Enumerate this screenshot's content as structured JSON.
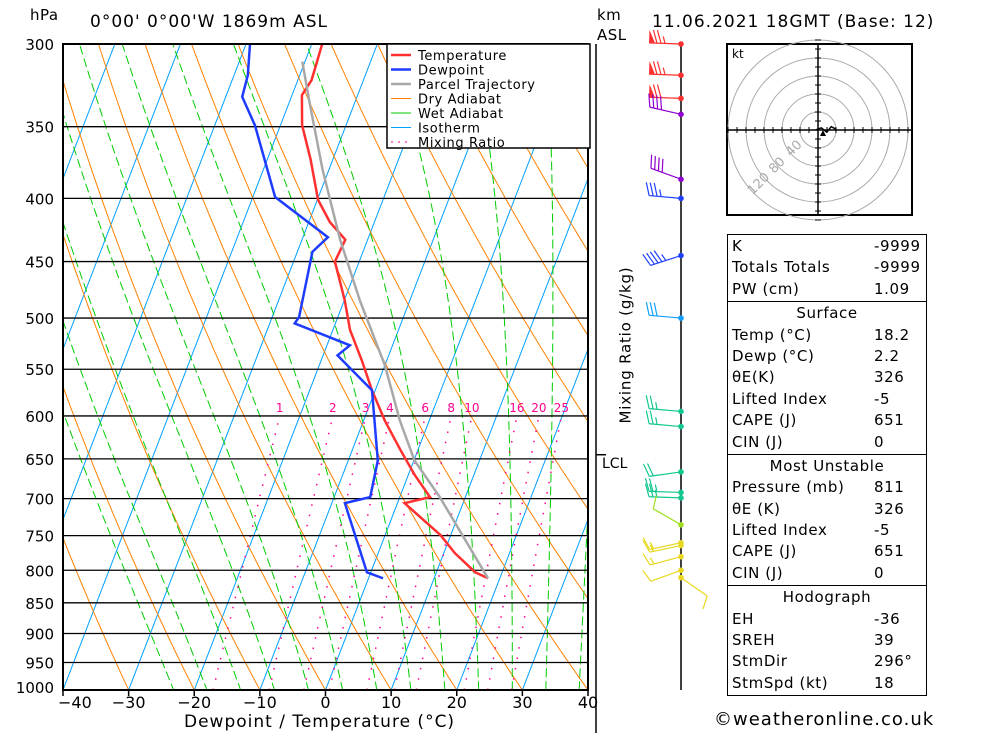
{
  "header": {
    "unit_left": "hPa",
    "location": "0°00' 0°00'W  1869m  ASL",
    "unit_right_1": "km",
    "unit_right_2": "ASL",
    "datetime": "11.06.2021  18GMT  (Base: 12)"
  },
  "footer": {
    "copyright": "©weatheronline.co.uk"
  },
  "colors": {
    "temperature": "#ff3030",
    "dewpoint": "#1e3cff",
    "parcel": "#a8a8a8",
    "dry_adiabat": "#ff8000",
    "wet_adiabat": "#00cc00",
    "isotherm": "#00a0ff",
    "mixing_ratio": "#ff0090"
  },
  "chart_data": {
    "type": "line",
    "subtype": "skew-t log-p",
    "xlabel": "Dewpoint / Temperature (°C)",
    "ylabel": "hPa",
    "secondary_label": "Mixing Ratio (g/kg)",
    "xlim": [
      -40,
      40
    ],
    "ylim": [
      1000,
      300
    ],
    "x_ticks": [
      -40,
      -30,
      -20,
      -10,
      0,
      10,
      20,
      30,
      40
    ],
    "y_ticks": [
      300,
      350,
      400,
      450,
      500,
      550,
      600,
      650,
      700,
      750,
      800,
      850,
      900,
      950,
      1000
    ],
    "mixing_ratio_labels": [
      1,
      2,
      3,
      4,
      6,
      8,
      10,
      16,
      20,
      25
    ],
    "lcl_label": "LCL",
    "lcl_pressure": 645,
    "legend": {
      "placement": "top-right",
      "entries": [
        "Temperature",
        "Dewpoint",
        "Parcel Trajectory",
        "Dry Adiabat",
        "Wet Adiabat",
        "Isotherm",
        "Mixing Ratio"
      ]
    },
    "series": [
      {
        "name": "Temperature",
        "points": [
          [
            812,
            18.2
          ],
          [
            803,
            15.9
          ],
          [
            775,
            11.7
          ],
          [
            749,
            8.4
          ],
          [
            706,
            1.1
          ],
          [
            698,
            4.6
          ],
          [
            670,
            1.0
          ],
          [
            639,
            -2.7
          ],
          [
            605,
            -6.8
          ],
          [
            572,
            -10.5
          ],
          [
            541,
            -13.8
          ],
          [
            511,
            -17.4
          ],
          [
            484,
            -19.9
          ],
          [
            450,
            -23.7
          ],
          [
            432,
            -23.4
          ],
          [
            418,
            -26.8
          ],
          [
            401,
            -29.9
          ],
          [
            372,
            -33.4
          ],
          [
            349,
            -36.7
          ],
          [
            330,
            -38.5
          ],
          [
            321,
            -37.9
          ],
          [
            300,
            -38.4
          ]
        ]
      },
      {
        "name": "Dewpoint",
        "points": [
          [
            812,
            2.2
          ],
          [
            803,
            -0.6
          ],
          [
            706,
            -8.0
          ],
          [
            698,
            -4.5
          ],
          [
            652,
            -5.5
          ],
          [
            572,
            -10.5
          ],
          [
            536,
            -17.8
          ],
          [
            526,
            -16.5
          ],
          [
            505,
            -26.2
          ],
          [
            499,
            -25.9
          ],
          [
            442,
            -27.7
          ],
          [
            430,
            -26.2
          ],
          [
            399,
            -36.6
          ],
          [
            349,
            -43.9
          ],
          [
            331,
            -47.5
          ],
          [
            318,
            -47.9
          ],
          [
            300,
            -49.4
          ]
        ]
      },
      {
        "name": "Parcel Trajectory",
        "points": [
          [
            812,
            18.2
          ],
          [
            698,
            6.1
          ],
          [
            652,
            0.1
          ],
          [
            605,
            -4.5
          ],
          [
            546,
            -10.0
          ],
          [
            484,
            -17.6
          ],
          [
            432,
            -24.2
          ],
          [
            379,
            -31.0
          ],
          [
            336,
            -36.7
          ],
          [
            310,
            -40.4
          ]
        ]
      }
    ],
    "wind_barbs": [
      {
        "p": 300,
        "dir": 272,
        "kt": 75,
        "color": "#ff3030"
      },
      {
        "p": 318,
        "dir": 272,
        "kt": 75,
        "color": "#ff3030"
      },
      {
        "p": 332,
        "dir": 272,
        "kt": 70,
        "color": "#ff3030"
      },
      {
        "p": 342,
        "dir": 283,
        "kt": 40,
        "color": "#9000d0"
      },
      {
        "p": 386,
        "dir": 290,
        "kt": 40,
        "color": "#9000d0"
      },
      {
        "p": 400,
        "dir": 275,
        "kt": 35,
        "color": "#2040ff"
      },
      {
        "p": 445,
        "dir": 252,
        "kt": 45,
        "color": "#2040ff"
      },
      {
        "p": 500,
        "dir": 275,
        "kt": 30,
        "color": "#10a0ff"
      },
      {
        "p": 595,
        "dir": 275,
        "kt": 25,
        "color": "#10c890"
      },
      {
        "p": 612,
        "dir": 275,
        "kt": 25,
        "color": "#10c890"
      },
      {
        "p": 666,
        "dir": 262,
        "kt": 20,
        "color": "#10c890"
      },
      {
        "p": 692,
        "dir": 272,
        "kt": 25,
        "color": "#10c890"
      },
      {
        "p": 699,
        "dir": 272,
        "kt": 25,
        "color": "#10c890"
      },
      {
        "p": 735,
        "dir": 300,
        "kt": 10,
        "color": "#a0e020"
      },
      {
        "p": 760,
        "dir": 258,
        "kt": 15,
        "color": "#e8d820"
      },
      {
        "p": 764,
        "dir": 258,
        "kt": 15,
        "color": "#e8d820"
      },
      {
        "p": 780,
        "dir": 255,
        "kt": 15,
        "color": "#e8d820"
      },
      {
        "p": 800,
        "dir": 250,
        "kt": 10,
        "color": "#e8d820"
      },
      {
        "p": 811,
        "dir": 125,
        "kt": 10,
        "color": "#e8d820"
      }
    ],
    "hodograph": {
      "unit": "kt",
      "ring_labels": [
        "40",
        "80",
        "120"
      ],
      "trace_kt": [
        [
          -2,
          0
        ],
        [
          3,
          2
        ],
        [
          8,
          -2
        ],
        [
          12,
          3
        ],
        [
          16,
          1
        ]
      ]
    }
  },
  "indices": {
    "general": [
      {
        "label": "K",
        "value": "-9999"
      },
      {
        "label": "Totals Totals",
        "value": "-9999"
      },
      {
        "label": "PW (cm)",
        "value": "1.09"
      }
    ],
    "surface": {
      "title": "Surface",
      "rows": [
        {
          "label": "Temp (°C)",
          "value": "18.2"
        },
        {
          "label": "Dewp (°C)",
          "value": "2.2"
        },
        {
          "label": "θE(K)",
          "value": "326"
        },
        {
          "label": "Lifted Index",
          "value": "-5"
        },
        {
          "label": "CAPE (J)",
          "value": "651"
        },
        {
          "label": "CIN (J)",
          "value": "0"
        }
      ]
    },
    "most_unstable": {
      "title": "Most Unstable",
      "rows": [
        {
          "label": "Pressure (mb)",
          "value": "811"
        },
        {
          "label": "θE (K)",
          "value": "326"
        },
        {
          "label": "Lifted Index",
          "value": "-5"
        },
        {
          "label": "CAPE (J)",
          "value": "651"
        },
        {
          "label": "CIN (J)",
          "value": "0"
        }
      ]
    },
    "hodograph": {
      "title": "Hodograph",
      "rows": [
        {
          "label": "EH",
          "value": "-36"
        },
        {
          "label": "SREH",
          "value": "39"
        },
        {
          "label": "StmDir",
          "value": "296°"
        },
        {
          "label": "StmSpd (kt)",
          "value": "18"
        }
      ]
    }
  }
}
